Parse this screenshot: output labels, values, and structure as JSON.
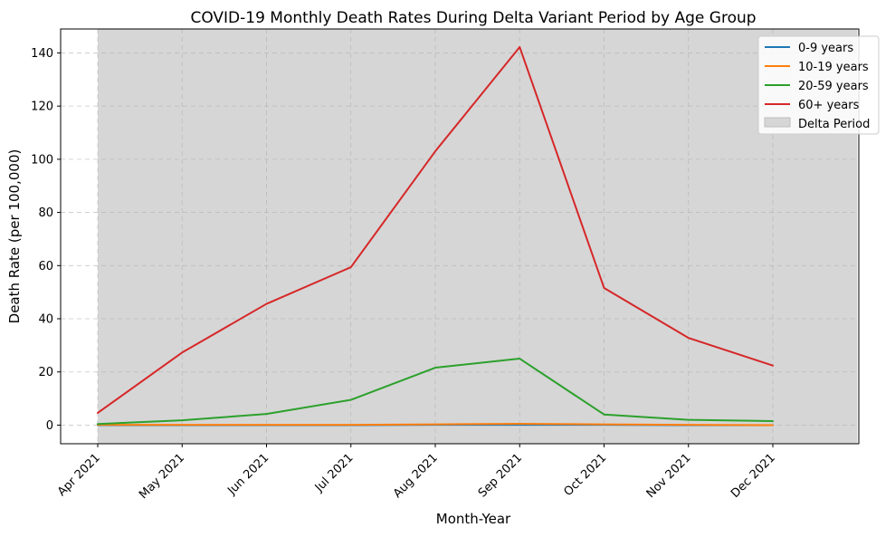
{
  "chart_data": {
    "type": "line",
    "title": "COVID-19 Monthly Death Rates During Delta Variant Period by Age Group",
    "xlabel": "Month-Year",
    "ylabel": "Death Rate (per 100,000)",
    "categories": [
      "Apr 2021",
      "May 2021",
      "Jun 2021",
      "Jul 2021",
      "Aug 2021",
      "Sep 2021",
      "Oct 2021",
      "Nov 2021",
      "Dec 2021"
    ],
    "ylim": [
      -7,
      149
    ],
    "y_ticks": [
      0,
      20,
      40,
      60,
      80,
      100,
      120,
      140
    ],
    "grid": true,
    "legend_position": "top-right",
    "series": [
      {
        "name": "0-9 years",
        "color": "#1f77b4",
        "values": [
          0.0,
          0.0,
          0.0,
          0.0,
          0.1,
          0.1,
          0.1,
          0.0,
          0.0
        ]
      },
      {
        "name": "10-19 years",
        "color": "#ff7f0e",
        "values": [
          0.1,
          0.1,
          0.1,
          0.1,
          0.3,
          0.5,
          0.3,
          0.1,
          0.0
        ]
      },
      {
        "name": "20-59 years",
        "color": "#2ca02c",
        "values": [
          0.4,
          1.8,
          4.2,
          9.5,
          21.6,
          25.0,
          4.0,
          2.0,
          1.5
        ]
      },
      {
        "name": "60+ years",
        "color": "#d62728",
        "values": [
          4.6,
          27.3,
          45.6,
          59.4,
          103.0,
          142.2,
          51.6,
          32.8,
          22.4
        ]
      }
    ],
    "shaded_region": {
      "name": "Delta Period",
      "color": "#d6d6d6",
      "start_category": "Apr 2021",
      "end": "Jan 2022"
    }
  }
}
